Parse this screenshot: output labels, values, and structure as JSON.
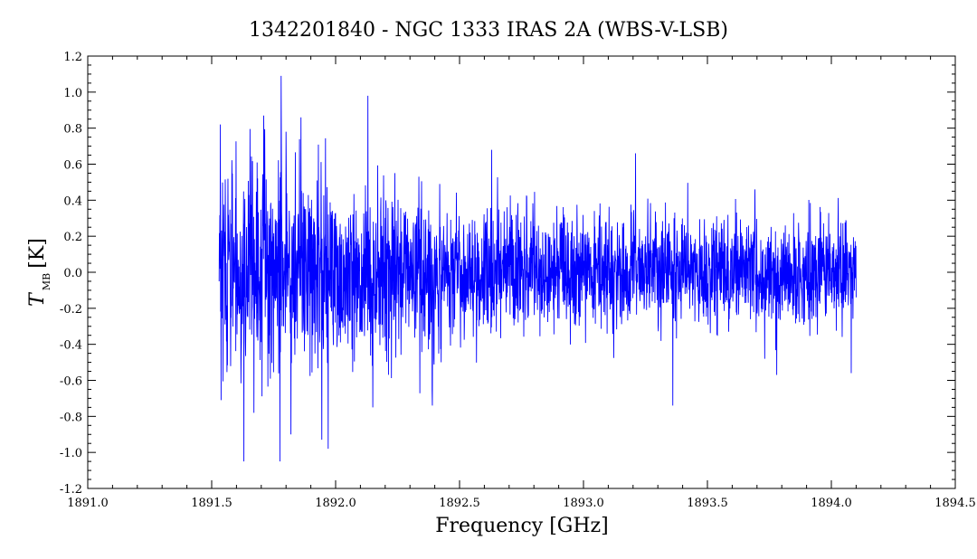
{
  "chart_data": {
    "type": "line",
    "title": "1342201840 - NGC 1333 IRAS 2A (WBS-V-LSB)",
    "xlabel": "Frequency [GHz]",
    "ylabel": {
      "symbol": "T",
      "subscript": "MB",
      "unit": "[K]"
    },
    "xlim": [
      1891.0,
      1894.5
    ],
    "ylim": [
      -1.2,
      1.2
    ],
    "x_ticks": [
      "1891.0",
      "1891.5",
      "1892.0",
      "1892.5",
      "1893.0",
      "1893.5",
      "1894.0",
      "1894.5"
    ],
    "y_ticks": [
      "-1.2",
      "-1.0",
      "-0.8",
      "-0.6",
      "-0.4",
      "-0.2",
      "0.0",
      "0.2",
      "0.4",
      "0.6",
      "0.8",
      "1.0",
      "1.2"
    ],
    "grid": false,
    "line_color": "#0000ff",
    "series": [
      {
        "x_start": 1891.53,
        "x_end": 1894.1,
        "envelope": {
          "frequency": [
            1891.53,
            1891.7,
            1891.9,
            1892.1,
            1892.3,
            1892.5,
            1892.7,
            1892.9,
            1893.1,
            1893.3,
            1893.5,
            1893.7,
            1893.9,
            1894.1
          ],
          "amplitude": [
            0.48,
            0.46,
            0.43,
            0.4,
            0.36,
            0.31,
            0.28,
            0.26,
            0.25,
            0.25,
            0.24,
            0.24,
            0.24,
            0.24
          ]
        },
        "spikes": [
          {
            "x": 1891.535,
            "y": 0.82
          },
          {
            "x": 1891.538,
            "y": -0.71
          },
          {
            "x": 1891.63,
            "y": -1.05
          },
          {
            "x": 1891.67,
            "y": -0.78
          },
          {
            "x": 1891.71,
            "y": 0.87
          },
          {
            "x": 1891.78,
            "y": 1.09
          },
          {
            "x": 1891.775,
            "y": -1.05
          },
          {
            "x": 1891.8,
            "y": 0.78
          },
          {
            "x": 1891.82,
            "y": -0.9
          },
          {
            "x": 1891.86,
            "y": 0.86
          },
          {
            "x": 1891.97,
            "y": -0.98
          },
          {
            "x": 1892.13,
            "y": 0.98
          },
          {
            "x": 1892.15,
            "y": -0.75
          },
          {
            "x": 1892.39,
            "y": -0.74
          },
          {
            "x": 1892.63,
            "y": 0.68
          },
          {
            "x": 1893.21,
            "y": 0.66
          },
          {
            "x": 1893.36,
            "y": -0.74
          },
          {
            "x": 1893.78,
            "y": -0.57
          },
          {
            "x": 1894.08,
            "y": -0.56
          }
        ]
      }
    ]
  }
}
